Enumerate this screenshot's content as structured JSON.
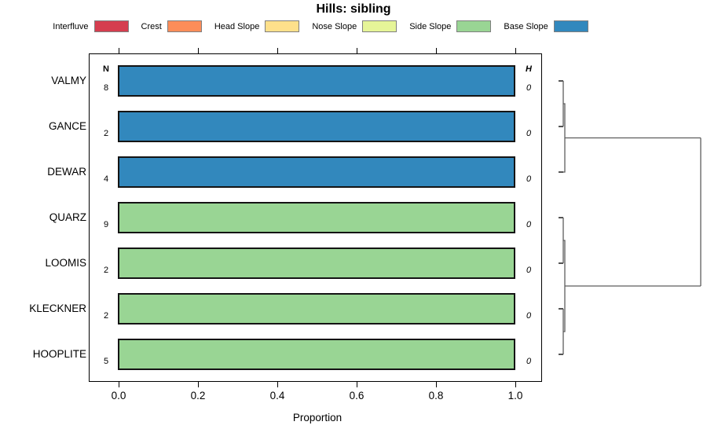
{
  "title": "Hills: sibling",
  "legend": {
    "items": [
      {
        "label": "Interfluve",
        "color": "#D53E4F"
      },
      {
        "label": "Crest",
        "color": "#FC8D59"
      },
      {
        "label": "Head Slope",
        "color": "#FEE08B"
      },
      {
        "label": "Nose Slope",
        "color": "#E6F598"
      },
      {
        "label": "Side Slope",
        "color": "#99D594"
      },
      {
        "label": "Base Slope",
        "color": "#3288BD"
      }
    ]
  },
  "columns": {
    "n_header": "N",
    "h_header": "H"
  },
  "axis": {
    "label": "Proportion",
    "tick_labels": [
      "0.0",
      "0.2",
      "0.4",
      "0.6",
      "0.8",
      "1.0"
    ]
  },
  "rows": [
    {
      "name": "VALMY",
      "n": 8,
      "h": 0,
      "category": "Base Slope",
      "proportion": 1.0,
      "color": "#3288BD"
    },
    {
      "name": "GANCE",
      "n": 2,
      "h": 0,
      "category": "Base Slope",
      "proportion": 1.0,
      "color": "#3288BD"
    },
    {
      "name": "DEWAR",
      "n": 4,
      "h": 0,
      "category": "Base Slope",
      "proportion": 1.0,
      "color": "#3288BD"
    },
    {
      "name": "QUARZ",
      "n": 9,
      "h": 0,
      "category": "Side Slope",
      "proportion": 1.0,
      "color": "#99D594"
    },
    {
      "name": "LOOMIS",
      "n": 2,
      "h": 0,
      "category": "Side Slope",
      "proportion": 1.0,
      "color": "#99D594"
    },
    {
      "name": "KLECKNER",
      "n": 2,
      "h": 0,
      "category": "Side Slope",
      "proportion": 1.0,
      "color": "#99D594"
    },
    {
      "name": "HOOPLITE",
      "n": 5,
      "h": 0,
      "category": "Side Slope",
      "proportion": 1.0,
      "color": "#99D594"
    }
  ],
  "chart_data": {
    "type": "bar",
    "orientation": "horizontal",
    "stacked": true,
    "title": "Hills: sibling",
    "xlabel": "Proportion",
    "xlim": [
      0,
      1
    ],
    "x_ticks": [
      0.0,
      0.2,
      0.4,
      0.6,
      0.8,
      1.0
    ],
    "grid": false,
    "legend_position": "top",
    "legend_categories": [
      "Interfluve",
      "Crest",
      "Head Slope",
      "Nose Slope",
      "Side Slope",
      "Base Slope"
    ],
    "category_colors": [
      "#D53E4F",
      "#FC8D59",
      "#FEE08B",
      "#E6F598",
      "#99D594",
      "#3288BD"
    ],
    "categories": [
      "VALMY",
      "GANCE",
      "DEWAR",
      "QUARZ",
      "LOOMIS",
      "KLECKNER",
      "HOOPLITE"
    ],
    "n_column": [
      8,
      2,
      4,
      9,
      2,
      2,
      5
    ],
    "h_column": [
      0,
      0,
      0,
      0,
      0,
      0,
      0
    ],
    "series": [
      {
        "name": "Interfluve",
        "values": [
          0,
          0,
          0,
          0,
          0,
          0,
          0
        ]
      },
      {
        "name": "Crest",
        "values": [
          0,
          0,
          0,
          0,
          0,
          0,
          0
        ]
      },
      {
        "name": "Head Slope",
        "values": [
          0,
          0,
          0,
          0,
          0,
          0,
          0
        ]
      },
      {
        "name": "Nose Slope",
        "values": [
          0,
          0,
          0,
          0,
          0,
          0,
          0
        ]
      },
      {
        "name": "Side Slope",
        "values": [
          0,
          0,
          0,
          1.0,
          1.0,
          1.0,
          1.0
        ]
      },
      {
        "name": "Base Slope",
        "values": [
          1.0,
          1.0,
          1.0,
          0,
          0,
          0,
          0
        ]
      }
    ],
    "dendrogram": {
      "side": "right",
      "all_merge_heights": 0,
      "structure": [
        [
          [
            "VALMY",
            "GANCE"
          ],
          "DEWAR"
        ],
        [
          [
            "QUARZ",
            "LOOMIS"
          ],
          [
            "KLECKNER",
            "HOOPLITE"
          ]
        ]
      ]
    }
  }
}
